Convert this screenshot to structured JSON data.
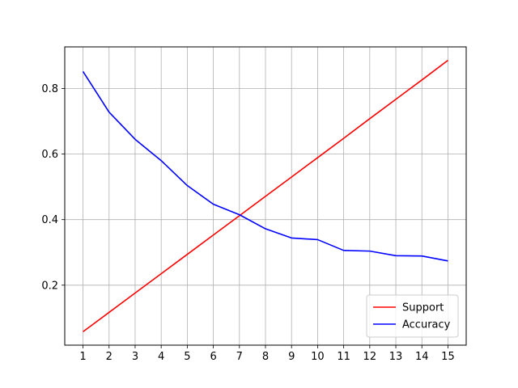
{
  "chart_data": {
    "type": "line",
    "title": "",
    "xlabel": "",
    "ylabel": "",
    "x": [
      1,
      2,
      3,
      4,
      5,
      6,
      7,
      8,
      9,
      10,
      11,
      12,
      13,
      14,
      15
    ],
    "series": [
      {
        "name": "Support",
        "color": "#ff0000",
        "values": [
          0.058,
          0.117,
          0.176,
          0.235,
          0.294,
          0.353,
          0.412,
          0.471,
          0.53,
          0.589,
          0.648,
          0.708,
          0.767,
          0.826,
          0.886
        ]
      },
      {
        "name": "Accuracy",
        "color": "#0000ff",
        "values": [
          0.852,
          0.728,
          0.645,
          0.58,
          0.504,
          0.447,
          0.415,
          0.372,
          0.344,
          0.339,
          0.306,
          0.304,
          0.29,
          0.289,
          0.274
        ]
      }
    ],
    "xticks": [
      "1",
      "2",
      "3",
      "4",
      "5",
      "6",
      "7",
      "8",
      "9",
      "10",
      "11",
      "12",
      "13",
      "14",
      "15"
    ],
    "yticks": [
      "0.2",
      "0.4",
      "0.6",
      "0.8"
    ],
    "ytick_values": [
      0.2,
      0.4,
      0.6,
      0.8
    ],
    "xlim": [
      0.3,
      15.7
    ],
    "ylim": [
      0.017,
      0.927
    ],
    "grid": true,
    "legend_position": "lower-right"
  }
}
